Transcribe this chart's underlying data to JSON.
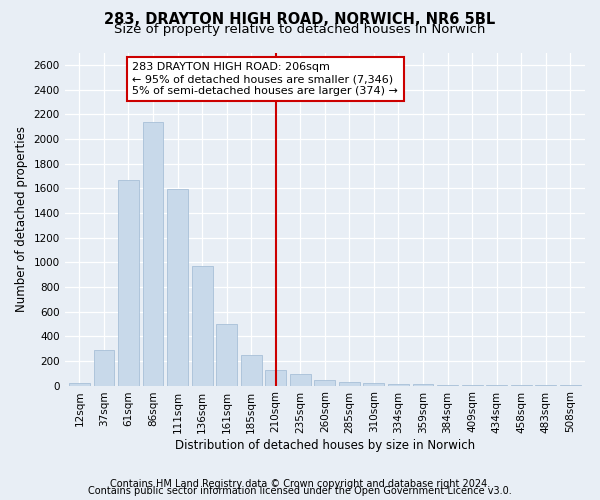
{
  "title1": "283, DRAYTON HIGH ROAD, NORWICH, NR6 5BL",
  "title2": "Size of property relative to detached houses in Norwich",
  "xlabel": "Distribution of detached houses by size in Norwich",
  "ylabel": "Number of detached properties",
  "categories": [
    "12sqm",
    "37sqm",
    "61sqm",
    "86sqm",
    "111sqm",
    "136sqm",
    "161sqm",
    "185sqm",
    "210sqm",
    "235sqm",
    "260sqm",
    "285sqm",
    "310sqm",
    "334sqm",
    "359sqm",
    "384sqm",
    "409sqm",
    "434sqm",
    "458sqm",
    "483sqm",
    "508sqm"
  ],
  "values": [
    20,
    290,
    1670,
    2140,
    1590,
    970,
    500,
    250,
    130,
    95,
    45,
    25,
    20,
    15,
    10,
    5,
    5,
    3,
    3,
    2,
    3
  ],
  "bar_color": "#c8d9ea",
  "bar_edge_color": "#a8c0d8",
  "vline_x_index": 8,
  "vline_color": "#cc0000",
  "annotation_line1": "283 DRAYTON HIGH ROAD: 206sqm",
  "annotation_line2": "← 95% of detached houses are smaller (7,346)",
  "annotation_line3": "5% of semi-detached houses are larger (374) →",
  "annotation_box_color": "#ffffff",
  "annotation_box_edge": "#cc0000",
  "ylim": [
    0,
    2700
  ],
  "yticks": [
    0,
    200,
    400,
    600,
    800,
    1000,
    1200,
    1400,
    1600,
    1800,
    2000,
    2200,
    2400,
    2600
  ],
  "footnote1": "Contains HM Land Registry data © Crown copyright and database right 2024.",
  "footnote2": "Contains public sector information licensed under the Open Government Licence v3.0.",
  "bg_color": "#e8eef5",
  "plot_bg_color": "#e8eef5",
  "title1_fontsize": 10.5,
  "title2_fontsize": 9.5,
  "axis_label_fontsize": 8.5,
  "tick_fontsize": 7.5,
  "annotation_fontsize": 8,
  "footnote_fontsize": 7
}
